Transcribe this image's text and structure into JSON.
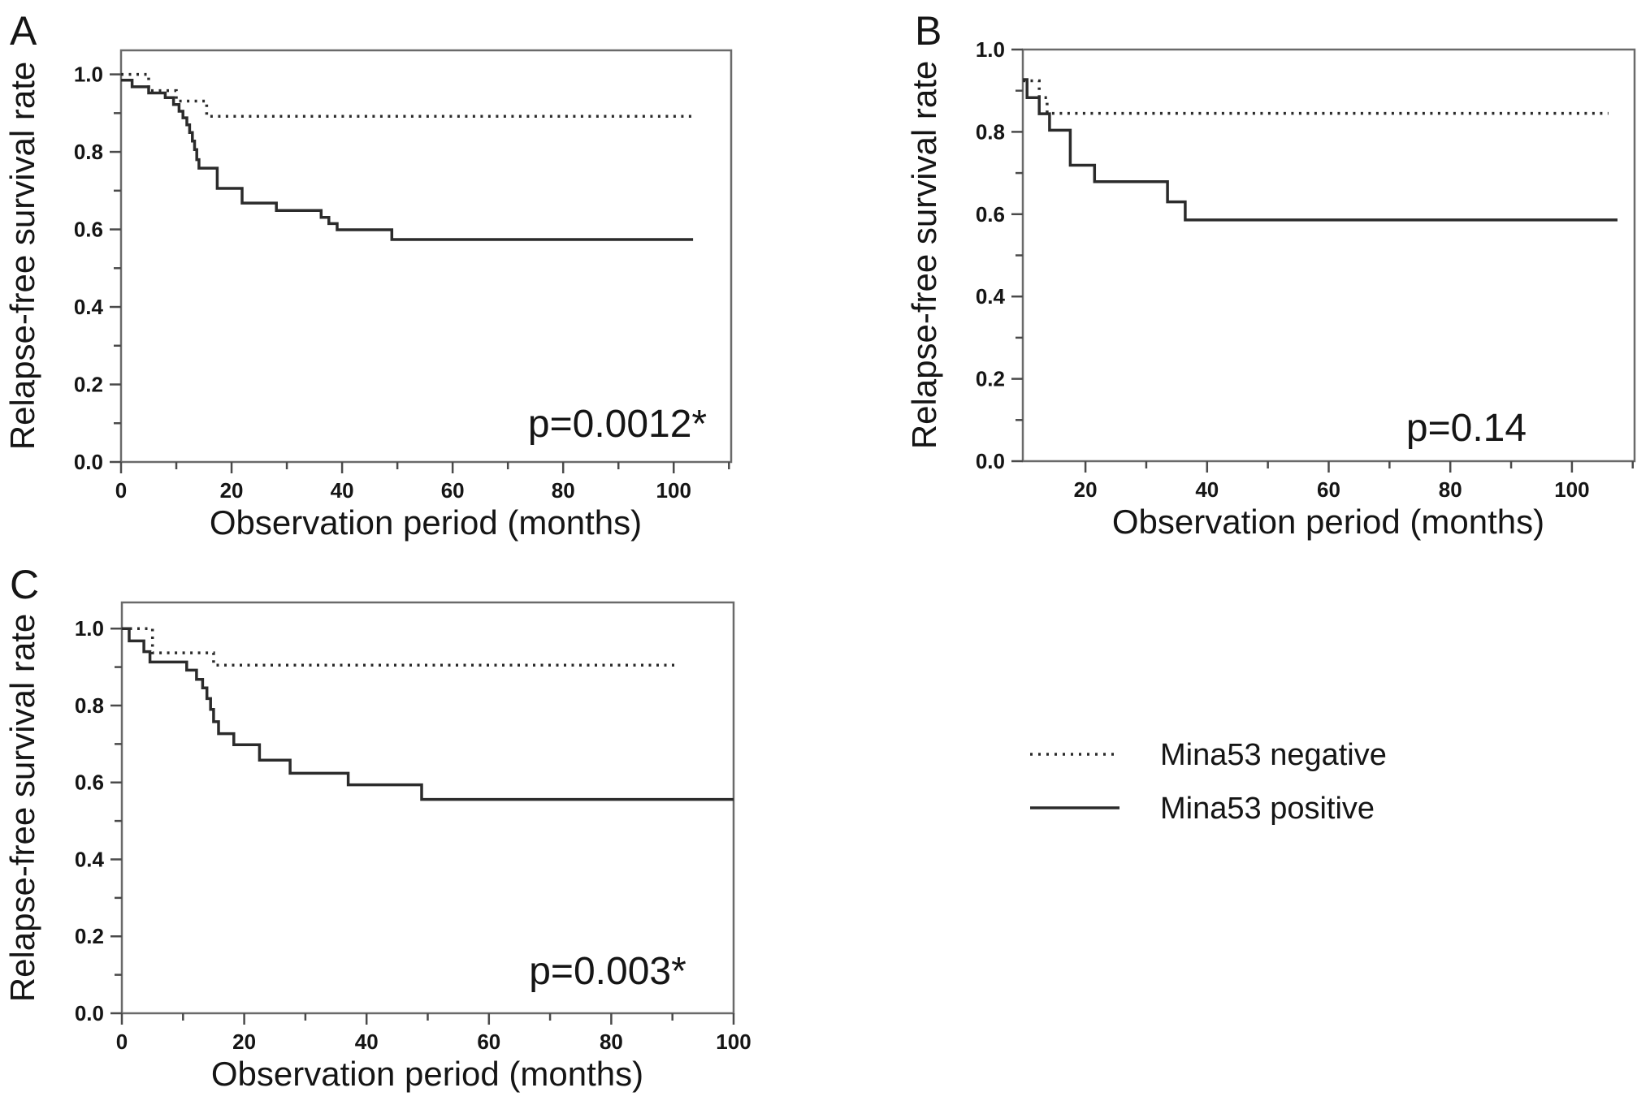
{
  "figure": {
    "description": "Kaplan-Meier relapse-free survival curves comparing Mina53 negative and Mina53 positive groups",
    "panel_letters": [
      "A",
      "B",
      "C"
    ]
  },
  "colors": {
    "curve": "#2b2b2b",
    "axis": "#6a6a6a",
    "text": "#151515",
    "background": "#ffffff"
  },
  "legend": {
    "entries": [
      {
        "label": "Mina53 negative",
        "style": "dotted",
        "swatch_name": "dotted-line-sample"
      },
      {
        "label": "Mina53 positive",
        "style": "solid",
        "swatch_name": "solid-line-sample"
      }
    ]
  },
  "chart_data": [
    {
      "type": "line",
      "subtype": "kaplan-meier-step",
      "panel_label": "A",
      "xlabel": "Observation period (months)",
      "ylabel": "Relapse-free survival rate",
      "p_value_label": "p=0.0012*",
      "xlim": [
        0,
        110.4
      ],
      "ylim": [
        0,
        1.062
      ],
      "grid": false,
      "x_major_ticks": [
        0,
        20,
        40,
        60,
        80,
        100
      ],
      "x_tick_labels": [
        "0",
        "20",
        "40",
        "60",
        "80",
        "100"
      ],
      "x_minor_ticks": [
        10,
        30,
        50,
        70,
        90,
        110
      ],
      "y_major_ticks": [
        0,
        0.2,
        0.4,
        0.6,
        0.8,
        1.0
      ],
      "y_tick_labels": [
        "0.0",
        "0.2",
        "0.4",
        "0.6",
        "0.8",
        "1.0"
      ],
      "y_minor_ticks": [
        0.1,
        0.3,
        0.5,
        0.7,
        0.9
      ],
      "series": [
        {
          "name": "Mina53 negative",
          "style": "dotted",
          "steps": [
            [
              0,
              1.0
            ],
            [
              5,
              0.958
            ],
            [
              10,
              0.931
            ],
            [
              15.5,
              0.892
            ]
          ],
          "end": 104
        },
        {
          "name": "Mina53 positive",
          "style": "solid",
          "steps": [
            [
              0,
              0.985
            ],
            [
              2,
              0.968
            ],
            [
              5,
              0.952
            ],
            [
              8,
              0.94
            ],
            [
              9.5,
              0.922
            ],
            [
              10.5,
              0.905
            ],
            [
              11.2,
              0.888
            ],
            [
              11.9,
              0.87
            ],
            [
              12.4,
              0.85
            ],
            [
              12.9,
              0.828
            ],
            [
              13.3,
              0.806
            ],
            [
              13.7,
              0.78
            ],
            [
              14.1,
              0.758
            ],
            [
              17.4,
              0.706
            ],
            [
              21.9,
              0.668
            ],
            [
              28.1,
              0.649
            ],
            [
              36.2,
              0.631
            ],
            [
              37.6,
              0.615
            ],
            [
              39.1,
              0.599
            ],
            [
              49,
              0.574
            ]
          ],
          "end": 103.5
        }
      ]
    },
    {
      "type": "line",
      "subtype": "kaplan-meier-step",
      "panel_label": "B",
      "xlabel": "Observation period (months)",
      "ylabel": "Relapse-free survival rate",
      "p_value_label": "p=0.14",
      "xlim": [
        9.7,
        110.3
      ],
      "ylim": [
        0,
        1.0
      ],
      "grid": false,
      "x_major_ticks": [
        20,
        40,
        60,
        80,
        100
      ],
      "x_tick_labels": [
        "20",
        "40",
        "60",
        "80",
        "100"
      ],
      "x_minor_ticks": [
        30,
        50,
        70,
        90,
        110
      ],
      "y_major_ticks": [
        0,
        0.2,
        0.4,
        0.6,
        0.8,
        1.0
      ],
      "y_tick_labels": [
        "0.0",
        "0.2",
        "0.4",
        "0.6",
        "0.8",
        "1.0"
      ],
      "y_minor_ticks": [
        0.1,
        0.3,
        0.5,
        0.7,
        0.9
      ],
      "series": [
        {
          "name": "Mina53 negative",
          "style": "dotted",
          "steps": [
            [
              9.7,
              0.924
            ],
            [
              12.4,
              0.883
            ],
            [
              13.7,
              0.845
            ]
          ],
          "end": 106
        },
        {
          "name": "Mina53 positive",
          "style": "solid",
          "steps": [
            [
              9.7,
              0.927
            ],
            [
              10.4,
              0.883
            ],
            [
              12.4,
              0.844
            ],
            [
              14.1,
              0.804
            ],
            [
              17.5,
              0.719
            ],
            [
              21.5,
              0.679
            ],
            [
              33.5,
              0.63
            ],
            [
              36.4,
              0.586
            ]
          ],
          "end": 107.5
        }
      ]
    },
    {
      "type": "line",
      "subtype": "kaplan-meier-step",
      "panel_label": "C",
      "xlabel": "Observation period (months)",
      "ylabel": "Relapse-free survival rate",
      "p_value_label": "p=0.003*",
      "xlim": [
        0,
        100
      ],
      "ylim": [
        0,
        1.068
      ],
      "grid": false,
      "x_major_ticks": [
        0,
        20,
        40,
        60,
        80,
        100
      ],
      "x_tick_labels": [
        "0",
        "20",
        "40",
        "60",
        "80",
        "100"
      ],
      "x_minor_ticks": [
        10,
        30,
        50,
        70,
        90
      ],
      "y_major_ticks": [
        0,
        0.2,
        0.4,
        0.6,
        0.8,
        1.0
      ],
      "y_tick_labels": [
        "0.0",
        "0.2",
        "0.4",
        "0.6",
        "0.8",
        "1.0"
      ],
      "y_minor_ticks": [
        0.1,
        0.3,
        0.5,
        0.7,
        0.9
      ],
      "series": [
        {
          "name": "Mina53 negative",
          "style": "dotted",
          "steps": [
            [
              0,
              1.0
            ],
            [
              5,
              0.937
            ],
            [
              15,
              0.905
            ]
          ],
          "end": 91
        },
        {
          "name": "Mina53 positive",
          "style": "solid",
          "steps": [
            [
              0,
              1.0
            ],
            [
              1.2,
              0.968
            ],
            [
              3.6,
              0.94
            ],
            [
              4.6,
              0.913
            ],
            [
              10.6,
              0.892
            ],
            [
              12.2,
              0.868
            ],
            [
              13.2,
              0.846
            ],
            [
              13.9,
              0.818
            ],
            [
              14.5,
              0.79
            ],
            [
              15,
              0.758
            ],
            [
              15.8,
              0.727
            ],
            [
              18.3,
              0.698
            ],
            [
              22.5,
              0.658
            ],
            [
              27.5,
              0.624
            ],
            [
              37,
              0.594
            ],
            [
              49,
              0.556
            ]
          ],
          "end": 100
        }
      ]
    }
  ]
}
